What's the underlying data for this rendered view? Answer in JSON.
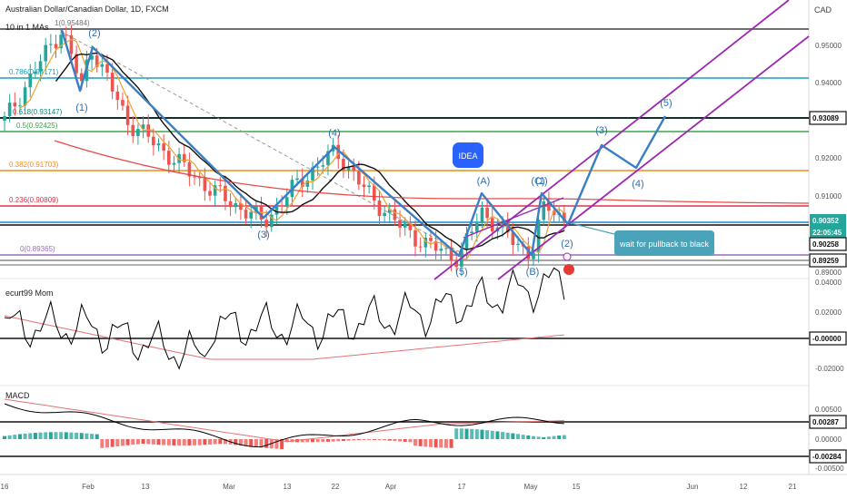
{
  "header": {
    "symbol_title": "Australian Dollar/Canadian Dollar, 1D, FXCM",
    "indicator_label": "10 in 1 MAs",
    "currency": "CAD"
  },
  "chart_data": [
    {
      "type": "candlestick",
      "x_axis": [
        "16",
        "Feb",
        "13",
        "Mar",
        "13",
        "22",
        "Apr",
        "17",
        "May",
        "15",
        "Jun",
        "12",
        "21"
      ],
      "y_axis": [
        "0.95000",
        "0.94000",
        "0.92000",
        "0.91000",
        "0.89000"
      ],
      "price_tags": [
        {
          "value": "0.93089",
          "style": "black-border"
        },
        {
          "value": "0.90352",
          "style": "green"
        },
        {
          "value": "22:05:45",
          "style": "green"
        },
        {
          "value": "0.90258",
          "style": "black-border"
        },
        {
          "value": "0.89259",
          "style": "black-border"
        }
      ],
      "fib_levels": [
        {
          "label": "1(0.95484)",
          "value": 0.95484,
          "color": "#6f6f6f"
        },
        {
          "label": "0.786(0.94171)",
          "value": 0.94171,
          "color": "#18a0b8"
        },
        {
          "label": "0.618(0.93147)",
          "value": 0.93147,
          "color": "#0c8a7c"
        },
        {
          "label": "0.5(0.92425)",
          "value": 0.92425,
          "color": "#3fa34d"
        },
        {
          "label": "0.382(0.91703)",
          "value": 0.91703,
          "color": "#f28c1c"
        },
        {
          "label": "0.236(0.90809)",
          "value": 0.90809,
          "color": "#e0304a"
        },
        {
          "label": "0(0.89365)",
          "value": 0.89365,
          "color": "#9a6bb8"
        }
      ],
      "wave_labels": [
        "(2)",
        "(1)",
        "(3)",
        "(4)",
        "(5)",
        "(A)",
        "(B)",
        "(C)",
        "(1)",
        "(2)",
        "(3)",
        "(4)",
        "(5)"
      ],
      "annotations": [
        "IDEA",
        "wait for pullback to black"
      ],
      "colors": {
        "up": "#26a69a",
        "down": "#ef5350",
        "wave": "#3a7fc4",
        "channel": "#9c27b0"
      }
    },
    {
      "type": "line",
      "title": "ecurt99 Mom",
      "y_axis": [
        "0.04000",
        "0.02000",
        "-0.02000"
      ],
      "price_tags": [
        {
          "value": "-0.00000",
          "style": "black-border"
        }
      ],
      "colors": {
        "mom": "#000000",
        "signal": "#e57373"
      }
    },
    {
      "type": "bar",
      "title": "MACD",
      "y_axis": [
        "0.00500",
        "0.00000",
        "-0.00500"
      ],
      "price_tags": [
        {
          "value": "0.00287",
          "style": "black-border"
        },
        {
          "value": "-0.00284",
          "style": "black-border"
        }
      ],
      "colors": {
        "pos": "#26a69a",
        "neg": "#ef5350",
        "macd": "#000000",
        "signal": "#e57373"
      }
    }
  ]
}
